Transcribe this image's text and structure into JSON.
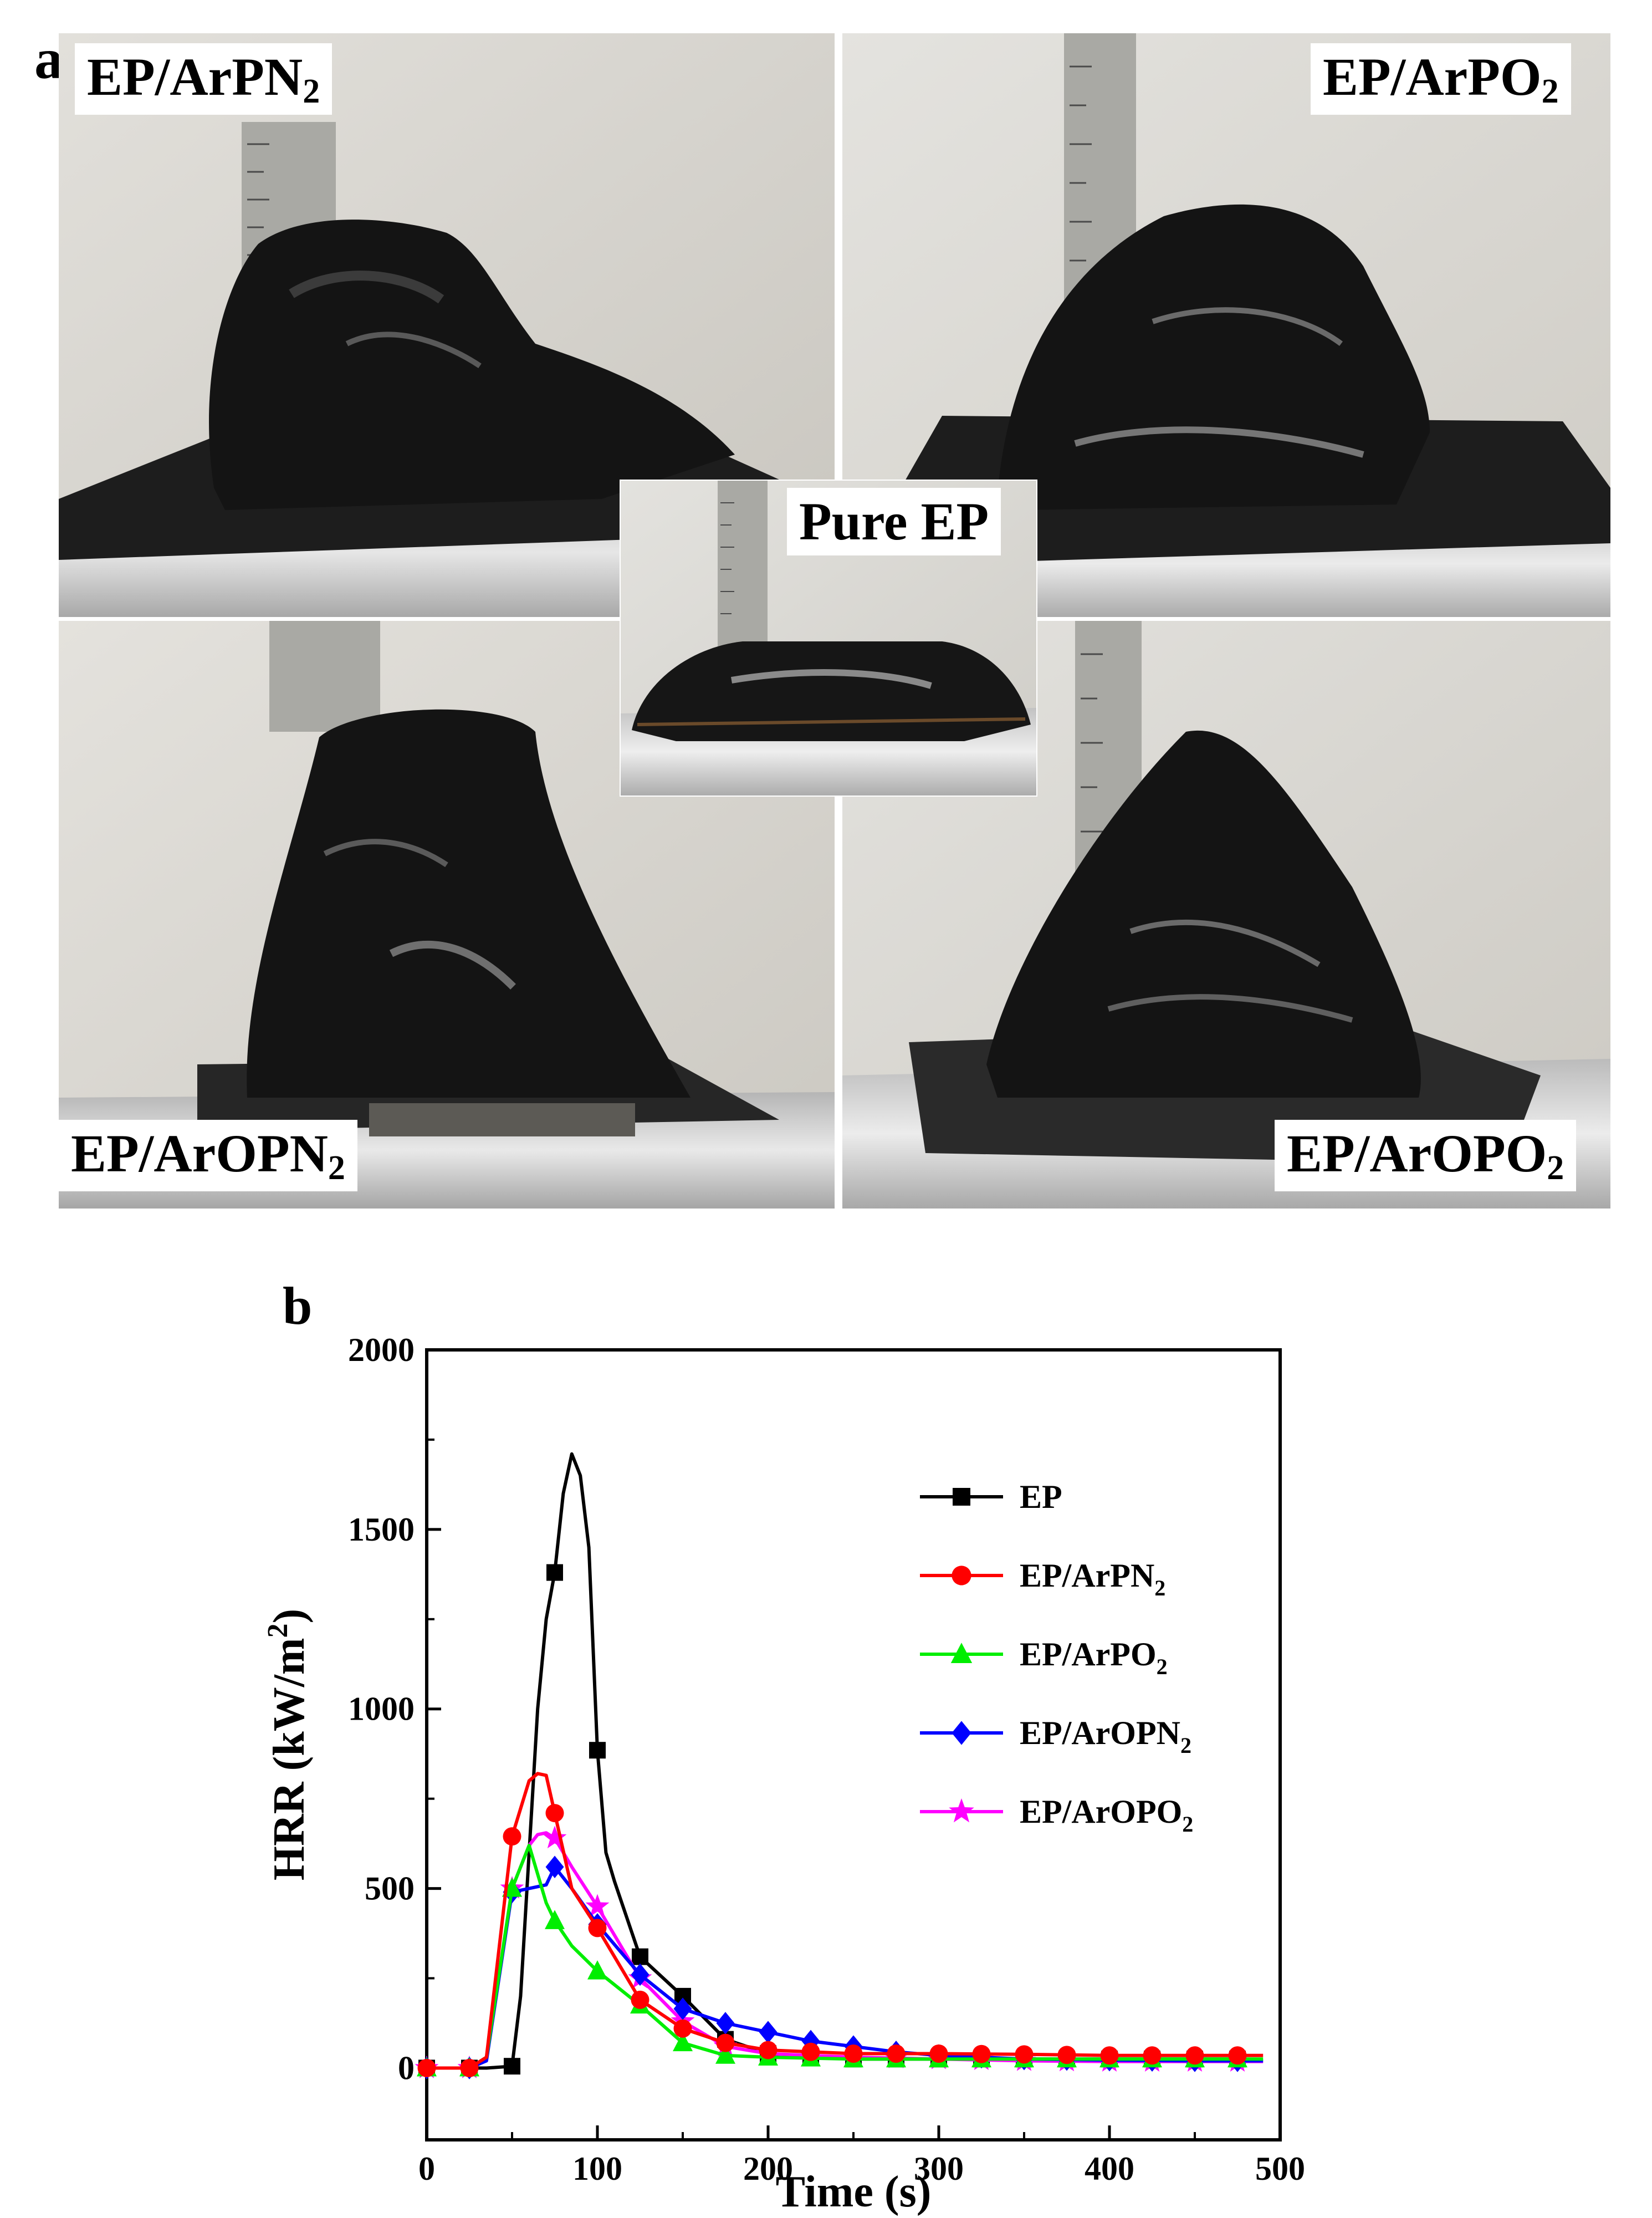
{
  "panel_a": {
    "letter": "a",
    "center_label": "Pure EP",
    "photos": [
      {
        "id": "arpn2",
        "label_main": "EP/ArPN",
        "label_sub": "2"
      },
      {
        "id": "arpo2",
        "label_main": "EP/ArPO",
        "label_sub": "2"
      },
      {
        "id": "aropn2",
        "label_main": "EP/ArOPN",
        "label_sub": "2"
      },
      {
        "id": "aropo2",
        "label_main": "EP/ArOPO",
        "label_sub": "2"
      }
    ],
    "colors": {
      "char": "#141414",
      "wall": "#d8d6cf",
      "foil": "#c9c9c9",
      "ruler": "#a9a9a4"
    }
  },
  "panel_b": {
    "letter": "b"
  },
  "chart_data": {
    "type": "line",
    "xlabel": "Time (s)",
    "ylabel_main": "HRR (kW/m",
    "ylabel_sup": "2",
    "ylabel_tail": ")",
    "xlim": [
      0,
      500
    ],
    "ylim": [
      -200,
      2000
    ],
    "xticks": [
      0,
      100,
      200,
      300,
      400,
      500
    ],
    "yticks": [
      0,
      500,
      1000,
      1500,
      2000
    ],
    "legend_position": "top-right",
    "series": [
      {
        "name": "EP",
        "name_sub": "",
        "color": "#000000",
        "marker": "square",
        "x": [
          0,
          25,
          35,
          50,
          55,
          60,
          65,
          70,
          75,
          80,
          85,
          90,
          95,
          100,
          105,
          110,
          125,
          150,
          175,
          200,
          225,
          250,
          275,
          300,
          325,
          350,
          375,
          400,
          425,
          450,
          475
        ],
        "y": [
          0,
          0,
          0,
          5,
          200,
          600,
          1000,
          1250,
          1380,
          1600,
          1710,
          1650,
          1450,
          885,
          600,
          520,
          310,
          200,
          80,
          40,
          30,
          25,
          25,
          25,
          25,
          25,
          25,
          25,
          25,
          25,
          25
        ],
        "marker_x": [
          0,
          25,
          50,
          75,
          100,
          125,
          150,
          175,
          200,
          225,
          250,
          275,
          300,
          325,
          350,
          375,
          400,
          425,
          450,
          475
        ]
      },
      {
        "name": "EP/ArPN",
        "name_sub": "2",
        "color": "#ff0000",
        "marker": "circle",
        "x": [
          0,
          25,
          35,
          50,
          60,
          65,
          70,
          75,
          85,
          100,
          125,
          150,
          175,
          200,
          250,
          300,
          350,
          400,
          450,
          490
        ],
        "y": [
          0,
          0,
          30,
          645,
          800,
          820,
          815,
          710,
          500,
          390,
          190,
          110,
          70,
          50,
          40,
          40,
          38,
          35,
          35,
          35
        ],
        "marker_x": [
          0,
          25,
          50,
          75,
          100,
          125,
          150,
          175,
          200,
          225,
          250,
          275,
          300,
          325,
          350,
          375,
          400,
          425,
          450,
          475
        ]
      },
      {
        "name": "EP/ArPO",
        "name_sub": "2",
        "color": "#00ee00",
        "marker": "triangle",
        "x": [
          0,
          25,
          35,
          50,
          60,
          65,
          70,
          75,
          85,
          100,
          125,
          150,
          175,
          200,
          250,
          300,
          350,
          400,
          450,
          490
        ],
        "y": [
          0,
          0,
          30,
          500,
          620,
          540,
          460,
          410,
          340,
          270,
          175,
          70,
          35,
          30,
          25,
          25,
          25,
          25,
          25,
          25
        ],
        "marker_x": [
          0,
          25,
          50,
          75,
          100,
          125,
          150,
          175,
          200,
          225,
          250,
          275,
          300,
          325,
          350,
          375,
          400,
          425,
          450,
          475
        ]
      },
      {
        "name": "EP/ArOPN",
        "name_sub": "2",
        "color": "#0000ff",
        "marker": "diamond",
        "x": [
          0,
          25,
          35,
          50,
          60,
          70,
          75,
          85,
          100,
          125,
          150,
          175,
          200,
          225,
          250,
          275,
          300,
          325,
          350,
          400,
          450,
          490
        ],
        "y": [
          0,
          0,
          20,
          490,
          500,
          510,
          560,
          500,
          400,
          260,
          165,
          125,
          100,
          75,
          60,
          45,
          35,
          30,
          25,
          22,
          20,
          20
        ],
        "marker_x": [
          0,
          25,
          50,
          75,
          100,
          125,
          150,
          175,
          200,
          225,
          250,
          275,
          300,
          325,
          350,
          375,
          400,
          425,
          450,
          475
        ]
      },
      {
        "name": "EP/ArOPO",
        "name_sub": "2",
        "color": "#ff00ff",
        "marker": "star",
        "x": [
          0,
          25,
          35,
          50,
          60,
          65,
          70,
          75,
          85,
          100,
          125,
          150,
          175,
          200,
          250,
          300,
          350,
          400,
          450,
          490
        ],
        "y": [
          0,
          0,
          25,
          500,
          620,
          650,
          655,
          640,
          560,
          450,
          250,
          130,
          60,
          40,
          30,
          25,
          20,
          18,
          18,
          18
        ],
        "marker_x": [
          0,
          25,
          50,
          75,
          100,
          125,
          150,
          175,
          200,
          225,
          250,
          275,
          300,
          325,
          350,
          375,
          400,
          425,
          450,
          475
        ]
      }
    ]
  }
}
